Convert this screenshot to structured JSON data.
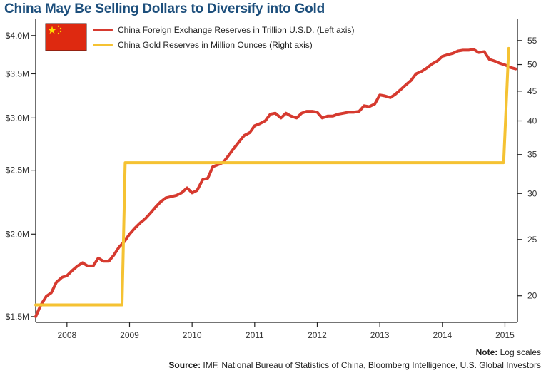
{
  "chart_data": {
    "type": "line",
    "title": "China May Be Selling Dollars to Diversify into Gold",
    "xlabel": "",
    "ylabel_left": "",
    "ylabel_right": "",
    "x_ticks": [
      "2008",
      "2009",
      "2010",
      "2011",
      "2012",
      "2013",
      "2014",
      "2015"
    ],
    "x_range": [
      2007.5,
      2015.2
    ],
    "left_axis": {
      "scale": "log",
      "range": [
        1.47,
        4.15
      ],
      "ticks": [
        4.0,
        3.5,
        3.0,
        2.5,
        2.0,
        1.5
      ],
      "tick_labels": [
        "$4.0M",
        "$3.5M",
        "$3.0M",
        "$2.5M",
        "$2.0M",
        "$1.5M"
      ]
    },
    "right_axis": {
      "scale": "log",
      "range": [
        18.0,
        58.5
      ],
      "ticks": [
        55,
        50,
        45,
        40,
        35,
        30,
        25,
        20
      ],
      "tick_labels": [
        "55",
        "50",
        "45",
        "40",
        "35",
        "30",
        "25",
        "20"
      ]
    },
    "legend": {
      "placement": "top-left",
      "flag": "china-flag",
      "entries": [
        {
          "label": "China Foreign Exchange Reserves in Trillion U.S.D. (Left axis)",
          "color": "#d63a2f"
        },
        {
          "label": "China Gold Reserves in Million Ounces (Right axis)",
          "color": "#f5c232"
        }
      ]
    },
    "series": [
      {
        "name": "China Foreign Exchange Reserves in Trillion U.S.D. (Left axis)",
        "axis": "left",
        "color": "#d63a2f",
        "x": [
          2007.5,
          2007.58,
          2007.67,
          2007.75,
          2007.83,
          2007.92,
          2008.0,
          2008.08,
          2008.17,
          2008.25,
          2008.33,
          2008.42,
          2008.5,
          2008.58,
          2008.67,
          2008.75,
          2008.83,
          2008.92,
          2009.0,
          2009.08,
          2009.17,
          2009.25,
          2009.33,
          2009.42,
          2009.5,
          2009.58,
          2009.67,
          2009.75,
          2009.83,
          2009.92,
          2010.0,
          2010.08,
          2010.17,
          2010.25,
          2010.33,
          2010.42,
          2010.5,
          2010.58,
          2010.67,
          2010.75,
          2010.83,
          2010.92,
          2011.0,
          2011.08,
          2011.17,
          2011.25,
          2011.33,
          2011.42,
          2011.5,
          2011.58,
          2011.67,
          2011.75,
          2011.83,
          2011.92,
          2012.0,
          2012.08,
          2012.17,
          2012.25,
          2012.33,
          2012.42,
          2012.5,
          2012.58,
          2012.67,
          2012.75,
          2012.83,
          2012.92,
          2013.0,
          2013.08,
          2013.17,
          2013.25,
          2013.33,
          2013.42,
          2013.5,
          2013.58,
          2013.67,
          2013.75,
          2013.83,
          2013.92,
          2014.0,
          2014.08,
          2014.17,
          2014.25,
          2014.33,
          2014.42,
          2014.5,
          2014.58,
          2014.67,
          2014.75,
          2014.83,
          2014.92,
          2015.0,
          2015.08,
          2015.17
        ],
        "values": [
          1.5,
          1.56,
          1.61,
          1.63,
          1.69,
          1.72,
          1.73,
          1.76,
          1.79,
          1.81,
          1.79,
          1.79,
          1.84,
          1.82,
          1.82,
          1.86,
          1.91,
          1.95,
          2.0,
          2.04,
          2.08,
          2.11,
          2.15,
          2.2,
          2.24,
          2.27,
          2.28,
          2.29,
          2.31,
          2.35,
          2.31,
          2.33,
          2.42,
          2.43,
          2.53,
          2.55,
          2.57,
          2.63,
          2.7,
          2.76,
          2.82,
          2.85,
          2.92,
          2.94,
          2.97,
          3.04,
          3.05,
          3.0,
          3.05,
          3.02,
          3.0,
          3.05,
          3.07,
          3.07,
          3.06,
          3.0,
          3.02,
          3.02,
          3.04,
          3.05,
          3.06,
          3.06,
          3.07,
          3.13,
          3.12,
          3.15,
          3.25,
          3.24,
          3.22,
          3.26,
          3.31,
          3.37,
          3.42,
          3.5,
          3.53,
          3.57,
          3.62,
          3.66,
          3.72,
          3.74,
          3.76,
          3.79,
          3.8,
          3.8,
          3.81,
          3.77,
          3.78,
          3.68,
          3.66,
          3.63,
          3.61,
          3.58,
          3.56
        ]
      },
      {
        "name": "China Gold Reserves in Million Ounces (Right axis)",
        "axis": "right",
        "color": "#f5c232",
        "x": [
          2007.5,
          2008.88,
          2008.93,
          2014.98,
          2015.06
        ],
        "values": [
          19.29,
          19.29,
          33.89,
          33.89,
          53.31
        ]
      }
    ],
    "annotations": {
      "note_label": "Note:",
      "note_text": " Log scales",
      "source_label": "Source:",
      "source_text": " IMF, National Bureau of Statistics of China, Bloomberg Intelligence, U.S. Global Investors"
    }
  }
}
